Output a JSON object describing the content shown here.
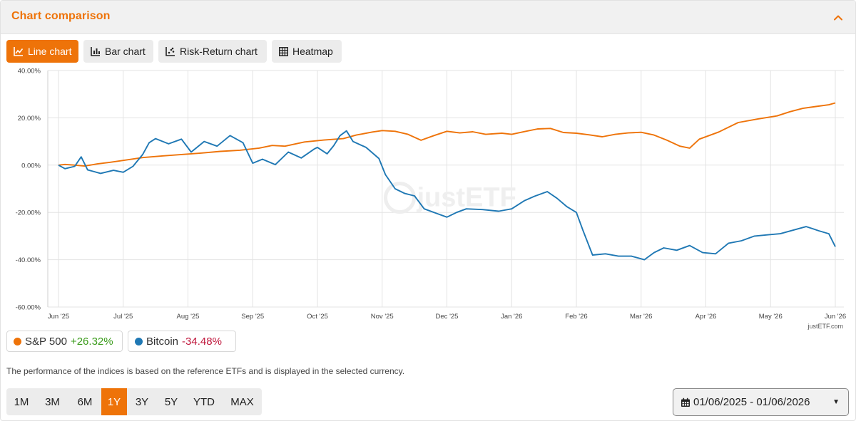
{
  "panel": {
    "title": "Chart comparison",
    "collapse_icon": "chevron-up-icon"
  },
  "chart_tabs": [
    {
      "label": "Line chart",
      "icon": "line-chart-icon",
      "active": true
    },
    {
      "label": "Bar chart",
      "icon": "bar-chart-icon",
      "active": false
    },
    {
      "label": "Risk-Return chart",
      "icon": "scatter-chart-icon",
      "active": false
    },
    {
      "label": "Heatmap",
      "icon": "grid-icon",
      "active": false
    }
  ],
  "colors": {
    "accent": "#ee7309",
    "sp500": "#ee7309",
    "bitcoin": "#1f78b4",
    "positive": "#3a9b1a",
    "negative": "#c0173c"
  },
  "chart_data": {
    "type": "line",
    "ylim": [
      -60,
      40
    ],
    "y_ticks": [
      "40.00%",
      "20.00%",
      "0.00%",
      "-20.00%",
      "-40.00%",
      "-60.00%"
    ],
    "x_ticks": [
      "Jun '25",
      "Jul '25",
      "Aug '25",
      "Sep '25",
      "Oct '25",
      "Nov '25",
      "Dec '25",
      "Jan '26",
      "Feb '26",
      "Mar '26",
      "Apr '26",
      "May '26",
      "Jun '26"
    ],
    "grid": true,
    "watermark": "justETF",
    "credit": "justETF.com",
    "series": [
      {
        "name": "S&P 500",
        "color": "#ee7309",
        "points": [
          [
            0,
            0
          ],
          [
            0.1,
            0.3
          ],
          [
            0.25,
            0
          ],
          [
            0.4,
            -0.4
          ],
          [
            0.6,
            0.5
          ],
          [
            0.8,
            1.2
          ],
          [
            1.0,
            2.0
          ],
          [
            1.3,
            3.2
          ],
          [
            1.6,
            3.9
          ],
          [
            1.9,
            4.5
          ],
          [
            2.2,
            5.1
          ],
          [
            2.5,
            5.8
          ],
          [
            2.8,
            6.3
          ],
          [
            3.1,
            7.2
          ],
          [
            3.3,
            8.3
          ],
          [
            3.5,
            8.0
          ],
          [
            3.8,
            9.8
          ],
          [
            4.1,
            10.6
          ],
          [
            4.4,
            11.2
          ],
          [
            4.6,
            12.7
          ],
          [
            4.85,
            14.0
          ],
          [
            5.0,
            14.6
          ],
          [
            5.2,
            14.3
          ],
          [
            5.4,
            13.0
          ],
          [
            5.6,
            10.5
          ],
          [
            5.8,
            12.5
          ],
          [
            6.0,
            14.3
          ],
          [
            6.2,
            13.6
          ],
          [
            6.4,
            14.1
          ],
          [
            6.6,
            13.0
          ],
          [
            6.85,
            13.5
          ],
          [
            7.0,
            13.0
          ],
          [
            7.2,
            14.2
          ],
          [
            7.4,
            15.3
          ],
          [
            7.6,
            15.5
          ],
          [
            7.8,
            13.8
          ],
          [
            8.0,
            13.5
          ],
          [
            8.2,
            12.8
          ],
          [
            8.4,
            12.0
          ],
          [
            8.6,
            13.0
          ],
          [
            8.8,
            13.6
          ],
          [
            9.0,
            13.9
          ],
          [
            9.2,
            12.7
          ],
          [
            9.4,
            10.5
          ],
          [
            9.6,
            8.0
          ],
          [
            9.75,
            7.2
          ],
          [
            9.9,
            11.0
          ],
          [
            10.2,
            14.0
          ],
          [
            10.5,
            18.0
          ],
          [
            10.8,
            19.5
          ],
          [
            11.1,
            20.8
          ],
          [
            11.3,
            22.6
          ],
          [
            11.5,
            24.0
          ],
          [
            11.7,
            24.8
          ],
          [
            11.9,
            25.5
          ],
          [
            12.0,
            26.3
          ]
        ]
      },
      {
        "name": "Bitcoin",
        "color": "#1f78b4",
        "points": [
          [
            0,
            0
          ],
          [
            0.1,
            -1.5
          ],
          [
            0.25,
            -0.5
          ],
          [
            0.35,
            3.5
          ],
          [
            0.45,
            -2.0
          ],
          [
            0.65,
            -3.5
          ],
          [
            0.85,
            -2.2
          ],
          [
            1.0,
            -3.0
          ],
          [
            1.15,
            -0.5
          ],
          [
            1.3,
            4.5
          ],
          [
            1.4,
            9.5
          ],
          [
            1.5,
            11.2
          ],
          [
            1.7,
            9.0
          ],
          [
            1.9,
            11.0
          ],
          [
            2.05,
            5.5
          ],
          [
            2.25,
            10.0
          ],
          [
            2.45,
            8.0
          ],
          [
            2.65,
            12.5
          ],
          [
            2.85,
            9.5
          ],
          [
            3.0,
            0.8
          ],
          [
            3.15,
            2.5
          ],
          [
            3.35,
            0.2
          ],
          [
            3.55,
            5.5
          ],
          [
            3.75,
            3.0
          ],
          [
            3.95,
            6.8
          ],
          [
            4.0,
            7.5
          ],
          [
            4.15,
            4.8
          ],
          [
            4.25,
            8.2
          ],
          [
            4.35,
            12.5
          ],
          [
            4.45,
            14.5
          ],
          [
            4.55,
            10.0
          ],
          [
            4.75,
            7.5
          ],
          [
            4.95,
            2.8
          ],
          [
            5.05,
            -4.0
          ],
          [
            5.2,
            -10.0
          ],
          [
            5.35,
            -12.0
          ],
          [
            5.5,
            -13.0
          ],
          [
            5.65,
            -18.5
          ],
          [
            5.85,
            -20.5
          ],
          [
            6.0,
            -22.0
          ],
          [
            6.15,
            -20.0
          ],
          [
            6.3,
            -18.5
          ],
          [
            6.55,
            -18.8
          ],
          [
            6.8,
            -19.5
          ],
          [
            7.0,
            -18.5
          ],
          [
            7.2,
            -15.0
          ],
          [
            7.35,
            -13.2
          ],
          [
            7.55,
            -11.2
          ],
          [
            7.7,
            -14.0
          ],
          [
            7.85,
            -17.5
          ],
          [
            8.0,
            -20.0
          ],
          [
            8.1,
            -27.5
          ],
          [
            8.25,
            -38.0
          ],
          [
            8.45,
            -37.5
          ],
          [
            8.65,
            -38.5
          ],
          [
            8.85,
            -38.5
          ],
          [
            9.05,
            -40.0
          ],
          [
            9.2,
            -37.0
          ],
          [
            9.35,
            -35.0
          ],
          [
            9.55,
            -36.0
          ],
          [
            9.75,
            -34.0
          ],
          [
            9.95,
            -37.0
          ],
          [
            10.15,
            -37.5
          ],
          [
            10.35,
            -33.0
          ],
          [
            10.55,
            -32.0
          ],
          [
            10.75,
            -30.0
          ],
          [
            10.95,
            -29.5
          ],
          [
            11.15,
            -29.0
          ],
          [
            11.35,
            -27.5
          ],
          [
            11.55,
            -26.0
          ],
          [
            11.75,
            -27.8
          ],
          [
            11.9,
            -29.0
          ],
          [
            12.0,
            -34.5
          ]
        ]
      }
    ]
  },
  "legend": [
    {
      "name": "S&P 500",
      "value": "+26.32%",
      "sign": "pos",
      "color": "#ee7309"
    },
    {
      "name": "Bitcoin",
      "value": "-34.48%",
      "sign": "neg",
      "color": "#1f78b4"
    }
  ],
  "note": "The performance of the indices is based on the reference ETFs and is displayed in the selected currency.",
  "ranges": [
    {
      "label": "1M",
      "active": false
    },
    {
      "label": "3M",
      "active": false
    },
    {
      "label": "6M",
      "active": false
    },
    {
      "label": "1Y",
      "active": true
    },
    {
      "label": "3Y",
      "active": false
    },
    {
      "label": "5Y",
      "active": false
    },
    {
      "label": "YTD",
      "active": false
    },
    {
      "label": "MAX",
      "active": false
    }
  ],
  "date_range": {
    "icon": "calendar-icon",
    "value": "01/06/2025 - 01/06/2026",
    "caret_icon": "caret-down-icon"
  }
}
